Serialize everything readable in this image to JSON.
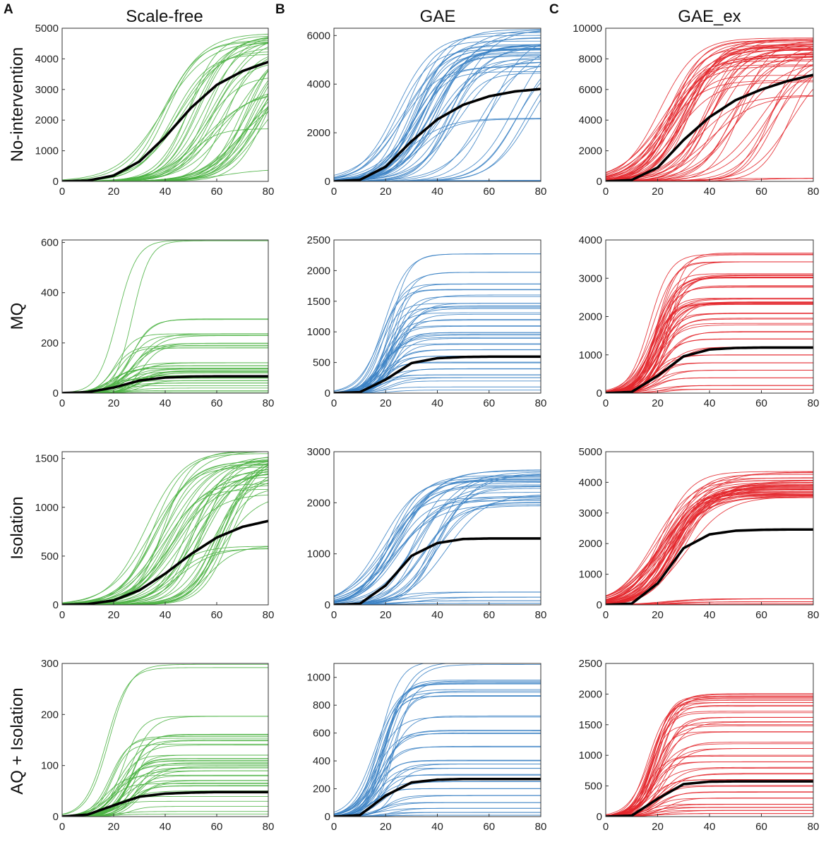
{
  "figure": {
    "panel_letters": [
      "A",
      "B",
      "C"
    ],
    "column_titles": [
      "Scale-free",
      "GAE",
      "GAE_ex"
    ],
    "row_titles": [
      "No-intervention",
      "MQ",
      "Isolation",
      "AQ + Isolation"
    ],
    "colors": {
      "Scale-free": "#4db344",
      "GAE": "#3b82c4",
      "GAE_ex": "#e3262b",
      "mean": "#000000",
      "axis": "#333333"
    }
  },
  "chart_data": [
    {
      "type": "line",
      "row": "No-intervention",
      "column": "Scale-free",
      "title": "Scale-free",
      "ylabel": "No-intervention",
      "xlim": [
        0,
        80
      ],
      "ylim": [
        0,
        5000
      ],
      "xticks": [
        0,
        20,
        40,
        60,
        80
      ],
      "yticks": [
        0,
        1000,
        2000,
        3000,
        4000,
        5000
      ],
      "mean_curve": {
        "x": [
          0,
          10,
          20,
          30,
          40,
          50,
          60,
          70,
          80
        ],
        "y": [
          0,
          25,
          190,
          650,
          1450,
          2400,
          3150,
          3600,
          3900
        ]
      },
      "series_summary": {
        "count": 45,
        "final_values": [
          4900,
          4850,
          4800,
          4750,
          4700,
          4650,
          4600,
          4550,
          4500,
          4450,
          4400,
          4350,
          4300,
          4250,
          4200,
          4150,
          4100,
          4050,
          4000,
          3950,
          3900,
          3700,
          3500,
          3300,
          3200,
          3100,
          3000,
          2900,
          2800,
          1700,
          400
        ],
        "midpoints": [
          40,
          42,
          44,
          46,
          48,
          50,
          52,
          54,
          56,
          58,
          60,
          62,
          64,
          66,
          68,
          70,
          72,
          74,
          76,
          78
        ]
      }
    },
    {
      "type": "line",
      "row": "No-intervention",
      "column": "GAE",
      "title": "GAE",
      "ylabel": "",
      "xlim": [
        0,
        80
      ],
      "ylim": [
        0,
        6300
      ],
      "xticks": [
        0,
        20,
        40,
        60,
        80
      ],
      "yticks": [
        0,
        2000,
        4000,
        6000
      ],
      "mean_curve": {
        "x": [
          0,
          10,
          20,
          30,
          40,
          50,
          60,
          70,
          80
        ],
        "y": [
          0,
          60,
          600,
          1650,
          2550,
          3150,
          3500,
          3700,
          3800
        ]
      },
      "series_summary": {
        "count": 50,
        "final_values": [
          6300,
          6200,
          6100,
          6000,
          5900,
          5800,
          5700,
          5650,
          5600,
          5550,
          5500,
          5450,
          5400,
          5350,
          5300,
          5250,
          5200,
          5100,
          5000,
          4900,
          4700,
          4500,
          2600,
          40,
          20
        ],
        "midpoints": [
          25,
          26,
          27,
          28,
          29,
          30,
          31,
          32,
          33,
          34,
          35,
          36,
          38,
          40,
          42,
          45,
          50,
          55,
          60,
          70,
          75
        ]
      }
    },
    {
      "type": "line",
      "row": "No-intervention",
      "column": "GAE_ex",
      "title": "GAE_ex",
      "ylabel": "",
      "xlim": [
        0,
        80
      ],
      "ylim": [
        0,
        10000
      ],
      "xticks": [
        0,
        20,
        40,
        60,
        80
      ],
      "yticks": [
        0,
        2000,
        4000,
        6000,
        8000,
        10000
      ],
      "mean_curve": {
        "x": [
          0,
          10,
          20,
          30,
          40,
          50,
          60,
          70,
          80
        ],
        "y": [
          0,
          90,
          900,
          2700,
          4200,
          5300,
          6000,
          6550,
          6950
        ]
      },
      "series_summary": {
        "count": 55,
        "final_values": [
          9400,
          9300,
          9200,
          9100,
          9000,
          8900,
          8800,
          8700,
          8600,
          8500,
          8400,
          8300,
          8200,
          8100,
          8000,
          7900,
          7800,
          7500,
          7000,
          6500,
          5600,
          200
        ],
        "midpoints": [
          22,
          23,
          24,
          25,
          26,
          27,
          28,
          29,
          30,
          32,
          34,
          36,
          38,
          40,
          44,
          48,
          52,
          56,
          60,
          65,
          70
        ]
      }
    },
    {
      "type": "line",
      "row": "MQ",
      "column": "Scale-free",
      "title": "",
      "ylabel": "MQ",
      "xlim": [
        0,
        80
      ],
      "ylim": [
        0,
        610
      ],
      "xticks": [
        0,
        20,
        40,
        60,
        80
      ],
      "yticks": [
        0,
        200,
        400,
        600
      ],
      "mean_curve": {
        "x": [
          0,
          10,
          20,
          30,
          40,
          50,
          60,
          70,
          80
        ],
        "y": [
          0,
          4,
          22,
          50,
          62,
          66,
          67,
          67,
          67
        ]
      },
      "series_summary": {
        "count": 40,
        "final_values": [
          610,
          295,
          235,
          230,
          200,
          190,
          180,
          120,
          110,
          100,
          95,
          90,
          85,
          80,
          70,
          60,
          50,
          40,
          30,
          20,
          10,
          5
        ],
        "midpoints": [
          20,
          22,
          24,
          26,
          28,
          30
        ]
      }
    },
    {
      "type": "line",
      "row": "MQ",
      "column": "GAE",
      "title": "",
      "ylabel": "",
      "xlim": [
        0,
        80
      ],
      "ylim": [
        0,
        2500
      ],
      "xticks": [
        0,
        20,
        40,
        60,
        80
      ],
      "yticks": [
        0,
        500,
        1000,
        1500,
        2000,
        2500
      ],
      "mean_curve": {
        "x": [
          0,
          10,
          20,
          30,
          40,
          50,
          60,
          70,
          80
        ],
        "y": [
          0,
          15,
          220,
          490,
          570,
          590,
          595,
          595,
          595
        ]
      },
      "series_summary": {
        "count": 45,
        "final_values": [
          2270,
          2000,
          1800,
          1700,
          1600,
          1470,
          1430,
          1380,
          1300,
          1200,
          1100,
          1000,
          950,
          900,
          800,
          700,
          600,
          500,
          400,
          300,
          250,
          200,
          100,
          50
        ],
        "midpoints": [
          18,
          19,
          20,
          21,
          22,
          23,
          24
        ]
      }
    },
    {
      "type": "line",
      "row": "MQ",
      "column": "GAE_ex",
      "title": "",
      "ylabel": "",
      "xlim": [
        0,
        80
      ],
      "ylim": [
        0,
        4000
      ],
      "xticks": [
        0,
        20,
        40,
        60,
        80
      ],
      "yticks": [
        0,
        1000,
        2000,
        3000,
        4000
      ],
      "mean_curve": {
        "x": [
          0,
          10,
          20,
          30,
          40,
          50,
          60,
          70,
          80
        ],
        "y": [
          0,
          30,
          450,
          960,
          1140,
          1180,
          1190,
          1190,
          1190
        ]
      },
      "series_summary": {
        "count": 55,
        "final_values": [
          3650,
          3400,
          3100,
          3050,
          3000,
          2800,
          2450,
          2400,
          2350,
          2300,
          2100,
          1950,
          1800,
          1600,
          1400,
          1200,
          1000,
          800,
          600,
          400,
          200,
          100
        ],
        "midpoints": [
          18,
          19,
          20,
          21,
          22,
          23
        ]
      }
    },
    {
      "type": "line",
      "row": "Isolation",
      "column": "Scale-free",
      "title": "",
      "ylabel": "Isolation",
      "xlim": [
        0,
        80
      ],
      "ylim": [
        0,
        1570
      ],
      "xticks": [
        0,
        20,
        40,
        60,
        80
      ],
      "yticks": [
        0,
        500,
        1000,
        1500
      ],
      "mean_curve": {
        "x": [
          0,
          10,
          20,
          30,
          40,
          50,
          60,
          70,
          80
        ],
        "y": [
          0,
          8,
          45,
          150,
          320,
          520,
          690,
          800,
          860
        ]
      },
      "series_summary": {
        "count": 45,
        "final_values": [
          1570,
          1550,
          1520,
          1500,
          1480,
          1460,
          1440,
          1420,
          1400,
          1380,
          1350,
          1320,
          1300,
          1250,
          1200,
          1150,
          600,
          580
        ],
        "midpoints": [
          34,
          36,
          38,
          40,
          42,
          44,
          46,
          48,
          50,
          52,
          55,
          58,
          62,
          66
        ]
      }
    },
    {
      "type": "line",
      "row": "Isolation",
      "column": "GAE",
      "title": "",
      "ylabel": "",
      "xlim": [
        0,
        80
      ],
      "ylim": [
        0,
        3000
      ],
      "xticks": [
        0,
        20,
        40,
        60,
        80
      ],
      "yticks": [
        0,
        1000,
        2000,
        3000
      ],
      "mean_curve": {
        "x": [
          0,
          10,
          20,
          30,
          40,
          50,
          60,
          70,
          80
        ],
        "y": [
          0,
          20,
          380,
          960,
          1210,
          1290,
          1300,
          1300,
          1300
        ]
      },
      "series_summary": {
        "count": 40,
        "final_values": [
          2630,
          2550,
          2500,
          2450,
          2400,
          2350,
          2300,
          2200,
          2150,
          2100,
          2050,
          2000,
          1950,
          250,
          150,
          80,
          30
        ],
        "midpoints": [
          20,
          21,
          22,
          23,
          24,
          25,
          26,
          30,
          32,
          34,
          36,
          40,
          45
        ]
      }
    },
    {
      "type": "line",
      "row": "Isolation",
      "column": "GAE_ex",
      "title": "",
      "ylabel": "",
      "xlim": [
        0,
        80
      ],
      "ylim": [
        0,
        5000
      ],
      "xticks": [
        0,
        20,
        40,
        60,
        80
      ],
      "yticks": [
        0,
        1000,
        2000,
        3000,
        4000,
        5000
      ],
      "mean_curve": {
        "x": [
          0,
          10,
          20,
          30,
          40,
          50,
          60,
          70,
          80
        ],
        "y": [
          0,
          40,
          700,
          1850,
          2300,
          2420,
          2450,
          2460,
          2460
        ]
      },
      "series_summary": {
        "count": 50,
        "final_values": [
          4300,
          4200,
          4100,
          4000,
          3950,
          3900,
          3850,
          3800,
          3750,
          3700,
          3650,
          3600,
          3550,
          3500,
          200,
          100,
          30
        ],
        "midpoints": [
          20,
          21,
          22,
          23,
          24,
          25,
          26,
          27,
          28,
          30
        ]
      }
    },
    {
      "type": "line",
      "row": "AQ + Isolation",
      "column": "Scale-free",
      "title": "",
      "ylabel": "AQ + Isolation",
      "xlim": [
        0,
        80
      ],
      "ylim": [
        0,
        300
      ],
      "xticks": [
        0,
        20,
        40,
        60,
        80
      ],
      "yticks": [
        0,
        100,
        200,
        300
      ],
      "mean_curve": {
        "x": [
          0,
          10,
          20,
          30,
          40,
          50,
          60,
          70,
          80
        ],
        "y": [
          0,
          4,
          22,
          39,
          45,
          47,
          48,
          48,
          48
        ]
      },
      "series_summary": {
        "count": 40,
        "final_values": [
          295,
          195,
          160,
          155,
          150,
          140,
          120,
          115,
          110,
          105,
          100,
          95,
          90,
          80,
          70,
          65,
          60,
          50,
          40,
          30,
          20,
          10,
          5
        ],
        "midpoints": [
          18,
          20,
          22,
          24,
          26,
          28,
          30
        ]
      }
    },
    {
      "type": "line",
      "row": "AQ + Isolation",
      "column": "GAE",
      "title": "",
      "ylabel": "",
      "xlim": [
        0,
        80
      ],
      "ylim": [
        0,
        1100
      ],
      "xticks": [
        0,
        20,
        40,
        60,
        80
      ],
      "yticks": [
        0,
        200,
        400,
        600,
        800,
        1000
      ],
      "mean_curve": {
        "x": [
          0,
          10,
          20,
          30,
          40,
          50,
          60,
          70,
          80
        ],
        "y": [
          0,
          10,
          150,
          245,
          265,
          270,
          270,
          270,
          270
        ]
      },
      "series_summary": {
        "count": 45,
        "final_values": [
          1100,
          980,
          960,
          900,
          880,
          860,
          720,
          620,
          600,
          500,
          400,
          380,
          350,
          300,
          250,
          200,
          150,
          100,
          60,
          30,
          10
        ],
        "midpoints": [
          16,
          17,
          18,
          19,
          20,
          22
        ]
      }
    },
    {
      "type": "line",
      "row": "AQ + Isolation",
      "column": "GAE_ex",
      "title": "",
      "ylabel": "",
      "xlim": [
        0,
        80
      ],
      "ylim": [
        0,
        2500
      ],
      "xticks": [
        0,
        20,
        40,
        60,
        80
      ],
      "yticks": [
        0,
        500,
        1000,
        1500,
        2000,
        2500
      ],
      "mean_curve": {
        "x": [
          0,
          10,
          20,
          30,
          40,
          50,
          60,
          70,
          80
        ],
        "y": [
          0,
          15,
          290,
          530,
          570,
          575,
          575,
          575,
          575
        ]
      },
      "series_summary": {
        "count": 50,
        "final_values": [
          2000,
          1950,
          1900,
          1850,
          1800,
          1700,
          1600,
          1550,
          1500,
          1400,
          1200,
          1100,
          1000,
          900,
          800,
          700,
          600,
          500,
          400,
          300,
          200,
          150,
          100,
          50
        ],
        "midpoints": [
          17,
          18,
          19,
          20,
          21,
          22
        ]
      }
    }
  ]
}
